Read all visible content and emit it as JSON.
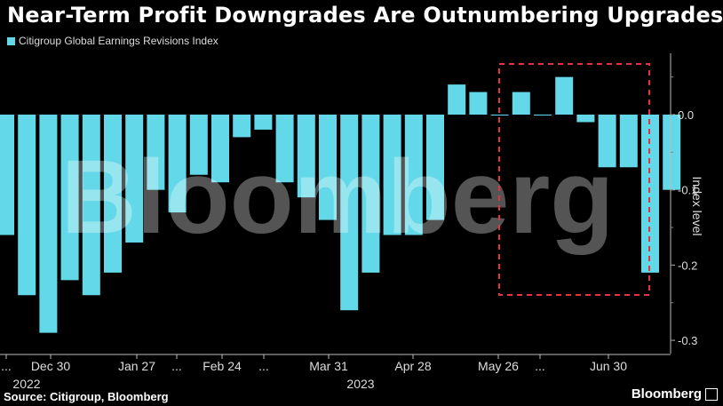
{
  "title": "Near-Term Profit Downgrades Are Outnumbering Upgrades",
  "legend_label": "Citigroup Global Earnings Revisions Index",
  "source": "Source: Citigroup, Bloomberg",
  "brand": "Bloomberg",
  "watermark": "Bloomberg",
  "colors": {
    "bar": "#63d8e8",
    "background": "#000000",
    "highlight_box": "#e8303f"
  },
  "chart_data": {
    "type": "bar",
    "title": "Near-Term Profit Downgrades Are Outnumbering Upgrades",
    "ylabel": "Index level",
    "ylim": [
      -0.3,
      0.06
    ],
    "yticks": [
      "0.0",
      "-0.1",
      "-0.2",
      "-0.3"
    ],
    "ytick_values": [
      0.0,
      -0.1,
      -0.2,
      -0.3
    ],
    "x_tick_labels": [
      "...",
      "Dec 30",
      "Jan 27",
      "...",
      "Feb 24",
      "...",
      "Mar 31",
      "Apr 28",
      "May 26",
      "...",
      "Jun 30"
    ],
    "year_labels": [
      "2022",
      "2023"
    ],
    "grid": false,
    "legend_position": "top-left",
    "series": [
      {
        "name": "Citigroup Global Earnings Revisions Index",
        "values": [
          -0.16,
          -0.24,
          -0.29,
          -0.22,
          -0.24,
          -0.21,
          -0.17,
          -0.1,
          -0.13,
          -0.08,
          -0.09,
          -0.03,
          -0.02,
          -0.09,
          -0.11,
          -0.14,
          -0.26,
          -0.21,
          -0.16,
          -0.16,
          -0.14,
          0.04,
          0.03,
          0.0,
          0.03,
          0.0,
          0.05,
          -0.01,
          -0.07,
          -0.07,
          -0.21,
          -0.1
        ]
      }
    ],
    "highlight_region": {
      "start_index": 24,
      "end_index": 31
    }
  }
}
